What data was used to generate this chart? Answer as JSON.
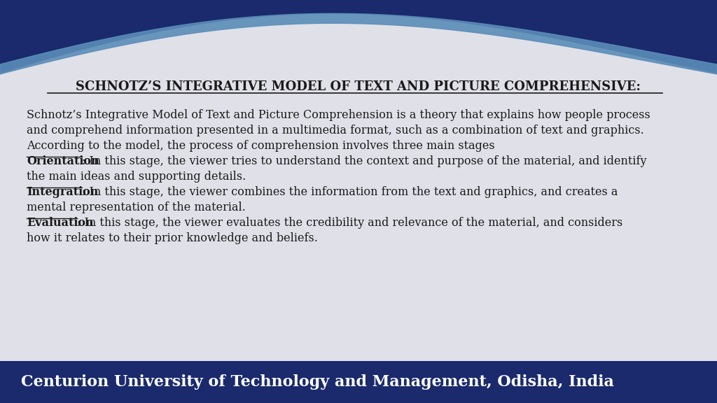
{
  "title": "SCHNOTZ’S INTEGRATIVE MODEL OF TEXT AND PICTURE COMPREHENSIVE",
  "title_colon": ":",
  "bg_color": "#e0e0e8",
  "header_color": "#1a2a6c",
  "footer_color": "#1a2a6c",
  "wave_color_light": "#5b8db8",
  "text_color": "#1a1a1a",
  "white": "#ffffff",
  "footer_text": "Centurion University of Technology and Management, Odisha, India",
  "line1": "Schnotz’s Integrative Model of Text and Picture Comprehension is a theory that explains how people process",
  "line2": "and comprehend information presented in a multimedia format, such as a combination of text and graphics.",
  "line3": "According to the model, the process of comprehension involves three main stages",
  "orientation_label": "Orientation",
  "orient_rest1": ": In this stage, the viewer tries to understand the context and purpose of the material, and identify",
  "orient_rest2": "the main ideas and supporting details.",
  "integration_label": "Integration",
  "integ_rest1": ": In this stage, the viewer combines the information from the text and graphics, and creates a",
  "integ_rest2": "mental representation of the material.",
  "evaluation_label": "Evaluation",
  "eval_rest1": ": In this stage, the viewer evaluates the credibility and relevance of the material, and considers",
  "eval_rest2": "how it relates to their prior knowledge and beliefs.",
  "font_size_title": 13,
  "font_size_body": 11.5,
  "font_size_footer": 16
}
